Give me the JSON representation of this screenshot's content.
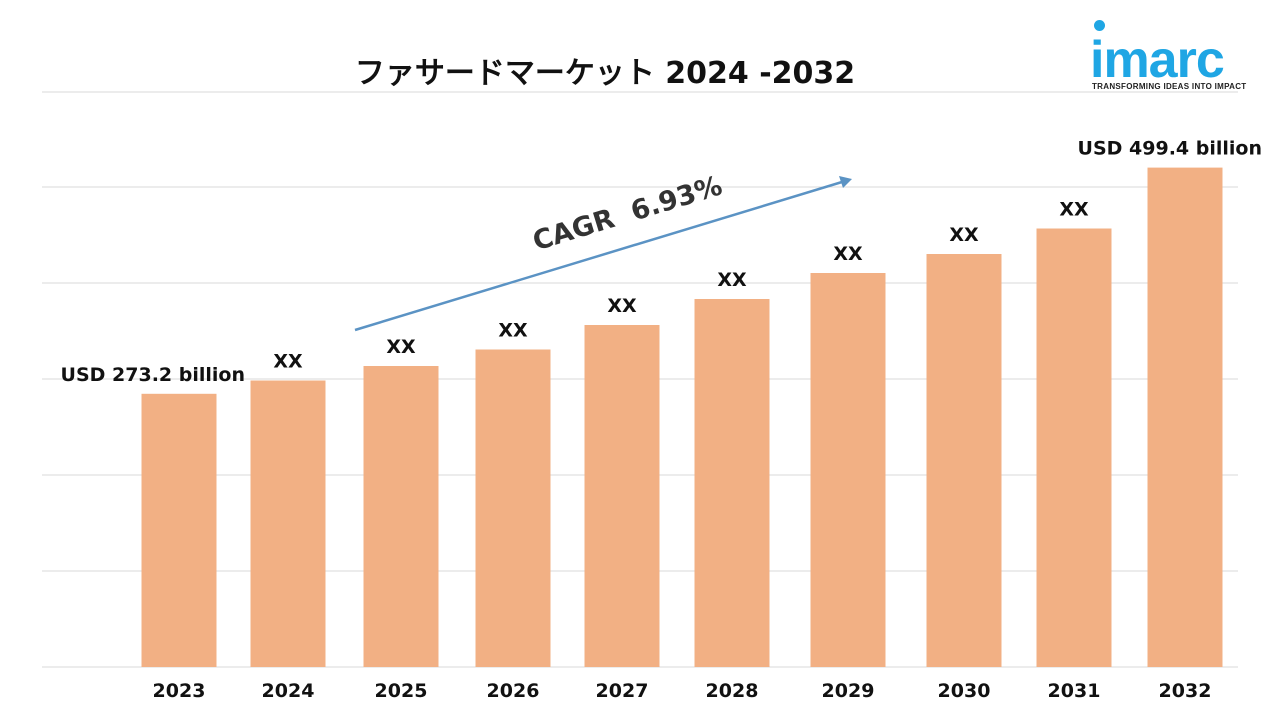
{
  "title": "ファサードマーケット 2024 -2032",
  "logo": {
    "name": "imarc",
    "tagline": "TRANSFORMING IDEAS INTO IMPACT",
    "color": "#1fa6e4"
  },
  "colors": {
    "bar": "#f2b084",
    "arrow": "#5b93c4",
    "grid": "#d9d9d9"
  },
  "annotation": {
    "text": "CAGR  6.93%"
  },
  "chart_data": {
    "type": "bar",
    "title": "ファサードマーケット 2024 -2032",
    "xlabel": "",
    "ylabel": "",
    "categories": [
      "2023",
      "2024",
      "2025",
      "2026",
      "2027",
      "2028",
      "2029",
      "2030",
      "2031",
      "2032"
    ],
    "values": [
      273.2,
      286.5,
      301.0,
      317.5,
      342.0,
      368.0,
      394.0,
      413.0,
      438.5,
      499.4
    ],
    "data_labels": [
      "USD 273.2 billion",
      "XX",
      "XX",
      "XX",
      "XX",
      "XX",
      "XX",
      "XX",
      "XX",
      "USD 499.4 billion"
    ],
    "ylim": [
      0,
      500
    ],
    "grid": true,
    "legend": "none"
  }
}
